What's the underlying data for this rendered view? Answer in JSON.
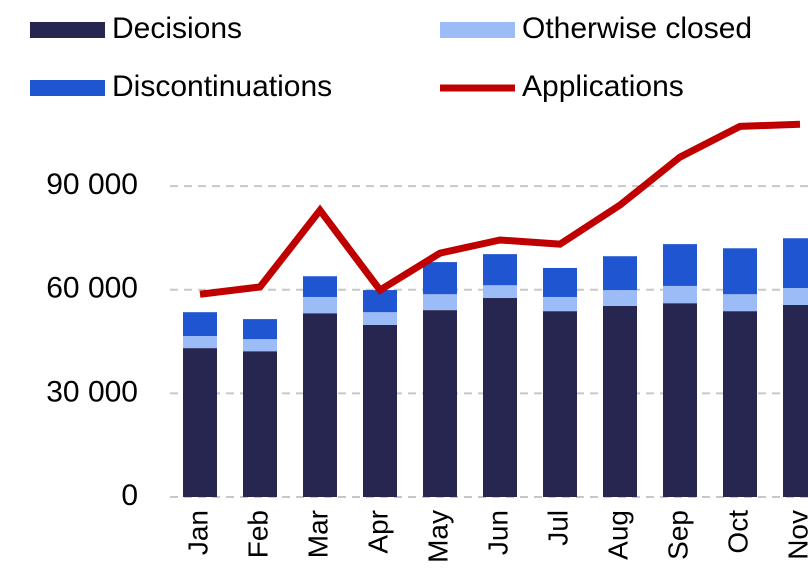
{
  "chart_data": {
    "type": "bar",
    "stacked": true,
    "categories": [
      "Jan",
      "Feb",
      "Mar",
      "Apr",
      "May",
      "Jun",
      "Jul",
      "Aug",
      "Sep",
      "Oct",
      "Nov"
    ],
    "series": [
      {
        "name": "Decisions",
        "color": "#262650",
        "values": [
          43100,
          42200,
          53200,
          49800,
          54100,
          57600,
          53800,
          55300,
          56100,
          53800,
          55600
        ]
      },
      {
        "name": "Otherwise closed",
        "color": "#9bbcf7",
        "values": [
          3500,
          3500,
          4700,
          3700,
          4600,
          3700,
          4100,
          4600,
          5000,
          4900,
          4900
        ]
      },
      {
        "name": "Discontinuations",
        "color": "#1f55d0",
        "values": [
          6900,
          5800,
          6000,
          6400,
          9300,
          9000,
          8400,
          9800,
          12100,
          13300,
          14400
        ]
      },
      {
        "name": "Applications",
        "color": "#c00000",
        "type": "line",
        "values": [
          58700,
          60800,
          83000,
          59900,
          70600,
          74400,
          73200,
          84500,
          98400,
          107300,
          107900
        ]
      }
    ],
    "ylim": [
      0,
      110000
    ],
    "yticks": [
      {
        "value": 0,
        "label": "0"
      },
      {
        "value": 30000,
        "label": "30 000"
      },
      {
        "value": 60000,
        "label": "60 000"
      },
      {
        "value": 90000,
        "label": "90 000"
      }
    ],
    "grid": true
  }
}
